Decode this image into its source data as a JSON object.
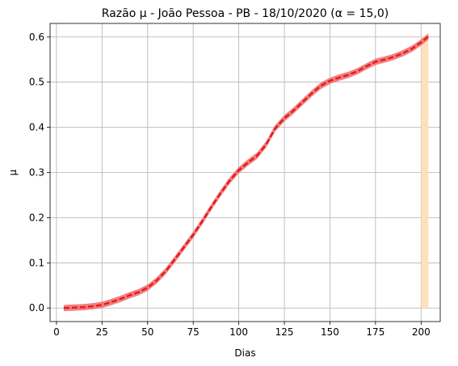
{
  "chart_data": {
    "type": "line",
    "title": "Razão μ - João Pessoa - PB - 18/10/2020 (α = 15,0)",
    "xlabel": "Dias",
    "ylabel": "μ",
    "xlim": [
      -3.5,
      210.5
    ],
    "ylim": [
      -0.03,
      0.63
    ],
    "grid": true,
    "x_ticks": [
      0,
      25,
      50,
      75,
      100,
      125,
      150,
      175,
      200
    ],
    "x_tick_labels": [
      "0",
      "25",
      "50",
      "75",
      "100",
      "125",
      "150",
      "175",
      "200"
    ],
    "y_ticks": [
      0.0,
      0.1,
      0.2,
      0.3,
      0.4,
      0.5,
      0.6
    ],
    "y_tick_labels": [
      "0.0",
      "0.1",
      "0.2",
      "0.3",
      "0.4",
      "0.5",
      "0.6"
    ],
    "highlight_band": {
      "x_start": 200,
      "x_end": 204,
      "color": "#ffe0bd"
    },
    "band_color": "#f06a6a",
    "line_color": "#e41a1c",
    "x": [
      4,
      10,
      15,
      20,
      25,
      30,
      35,
      40,
      45,
      50,
      55,
      60,
      65,
      70,
      75,
      80,
      85,
      90,
      95,
      100,
      105,
      110,
      115,
      120,
      125,
      130,
      135,
      140,
      145,
      150,
      155,
      160,
      165,
      170,
      175,
      180,
      185,
      190,
      195,
      200,
      204
    ],
    "series": [
      {
        "values": [
          0.0,
          0.001,
          0.002,
          0.004,
          0.007,
          0.013,
          0.02,
          0.028,
          0.035,
          0.045,
          0.061,
          0.082,
          0.108,
          0.135,
          0.162,
          0.192,
          0.224,
          0.254,
          0.282,
          0.305,
          0.322,
          0.337,
          0.362,
          0.398,
          0.42,
          0.437,
          0.456,
          0.475,
          0.492,
          0.503,
          0.51,
          0.516,
          0.524,
          0.535,
          0.545,
          0.55,
          0.556,
          0.564,
          0.574,
          0.588,
          0.601
        ],
        "band_halfwidth": 0.007
      }
    ]
  }
}
